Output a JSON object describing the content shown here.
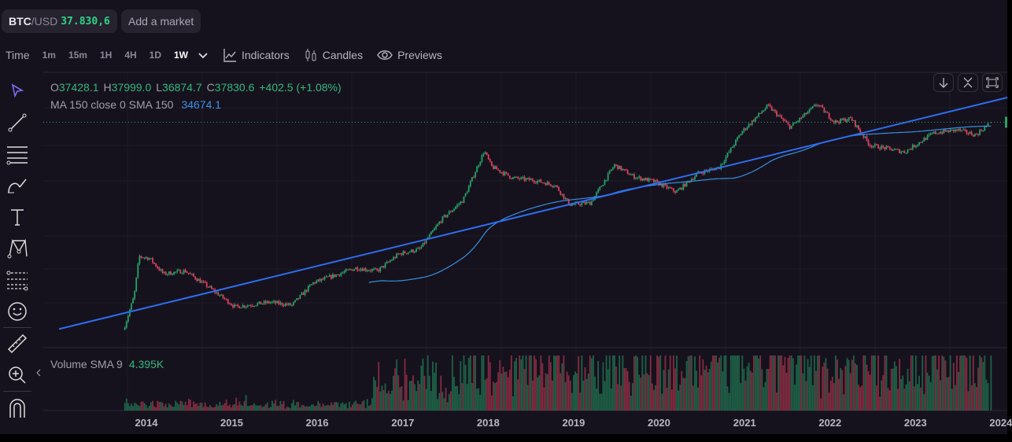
{
  "market": {
    "base": "BTC",
    "quote": "/USD",
    "price": "37.830,6",
    "add_market": "Add a market"
  },
  "toolbar": {
    "time_label": "Time",
    "timeframes": [
      "1m",
      "15m",
      "1H",
      "4H",
      "1D",
      "1W"
    ],
    "active_timeframe": "1W",
    "indicators": "Indicators",
    "candles": "Candles",
    "previews": "Previews"
  },
  "legend": {
    "o_label": "O",
    "o": "37428.1",
    "h_label": "H",
    "h": "37999.0",
    "l_label": "L",
    "l": "36874.7",
    "c_label": "C",
    "c": "37830.6",
    "change": "+402.5 (+1.08%)",
    "ma_label": "MA 150 close 0 SMA 150",
    "ma_value": "34674.1"
  },
  "volume": {
    "label": "Volume SMA 9",
    "value": "4.395K"
  },
  "side_tools": [
    "cursor-icon",
    "trendline-icon",
    "horizontal-lines-icon",
    "brush-icon",
    "text-icon",
    "pattern-icon",
    "fib-icon",
    "emoji-icon",
    "ruler-icon",
    "zoom-in-icon",
    "magnet-icon"
  ],
  "colors": {
    "up": "#26a269",
    "down": "#e0405e",
    "trend": "#2f6df0",
    "ma": "#3a8fe0",
    "accent": "#7b6cf0"
  },
  "chart_data": {
    "type": "candlestick",
    "timeframe": "1W",
    "y_scale": "log",
    "x_tick_labels": [
      "2014",
      "2015",
      "2016",
      "2017",
      "2018",
      "2019",
      "2020",
      "2021",
      "2022",
      "2023",
      "2024"
    ],
    "price_path": [
      [
        "2013-10-01",
        130
      ],
      [
        "2013-11-10",
        300
      ],
      [
        "2013-12-01",
        900
      ],
      [
        "2014-01-15",
        850
      ],
      [
        "2014-03-15",
        550
      ],
      [
        "2014-06-15",
        600
      ],
      [
        "2014-09-15",
        400
      ],
      [
        "2015-01-15",
        220
      ],
      [
        "2015-06-15",
        250
      ],
      [
        "2015-09-15",
        230
      ],
      [
        "2015-12-15",
        430
      ],
      [
        "2016-06-15",
        650
      ],
      [
        "2016-09-15",
        600
      ],
      [
        "2016-12-15",
        960
      ],
      [
        "2017-03-15",
        1100
      ],
      [
        "2017-06-15",
        2500
      ],
      [
        "2017-09-15",
        4300
      ],
      [
        "2017-12-15",
        17000
      ],
      [
        "2018-01-15",
        11000
      ],
      [
        "2018-04-15",
        8000
      ],
      [
        "2018-07-15",
        7500
      ],
      [
        "2018-10-15",
        6500
      ],
      [
        "2018-12-15",
        3800
      ],
      [
        "2019-03-15",
        4000
      ],
      [
        "2019-06-25",
        11500
      ],
      [
        "2019-09-15",
        8300
      ],
      [
        "2019-12-15",
        7200
      ],
      [
        "2020-03-15",
        5400
      ],
      [
        "2020-06-15",
        9100
      ],
      [
        "2020-09-15",
        10800
      ],
      [
        "2020-12-20",
        29000
      ],
      [
        "2021-04-10",
        60000
      ],
      [
        "2021-07-15",
        33000
      ],
      [
        "2021-11-08",
        63000
      ],
      [
        "2022-01-20",
        38000
      ],
      [
        "2022-04-01",
        42000
      ],
      [
        "2022-06-20",
        20000
      ],
      [
        "2022-11-15",
        16500
      ],
      [
        "2023-03-20",
        28000
      ],
      [
        "2023-06-30",
        30500
      ],
      [
        "2023-09-15",
        26500
      ],
      [
        "2023-11-20",
        37830.6
      ]
    ],
    "last_candle": {
      "open": 37428.1,
      "high": 37999.0,
      "low": 36874.7,
      "close": 37830.6
    },
    "moving_average": {
      "type": "SMA",
      "period": 150,
      "last": 34674.1
    },
    "trendline": [
      [
        "2013-07-01",
        160
      ],
      [
        "2023-12-31",
        72000
      ]
    ],
    "price_line": 37830.6,
    "grid": true
  }
}
